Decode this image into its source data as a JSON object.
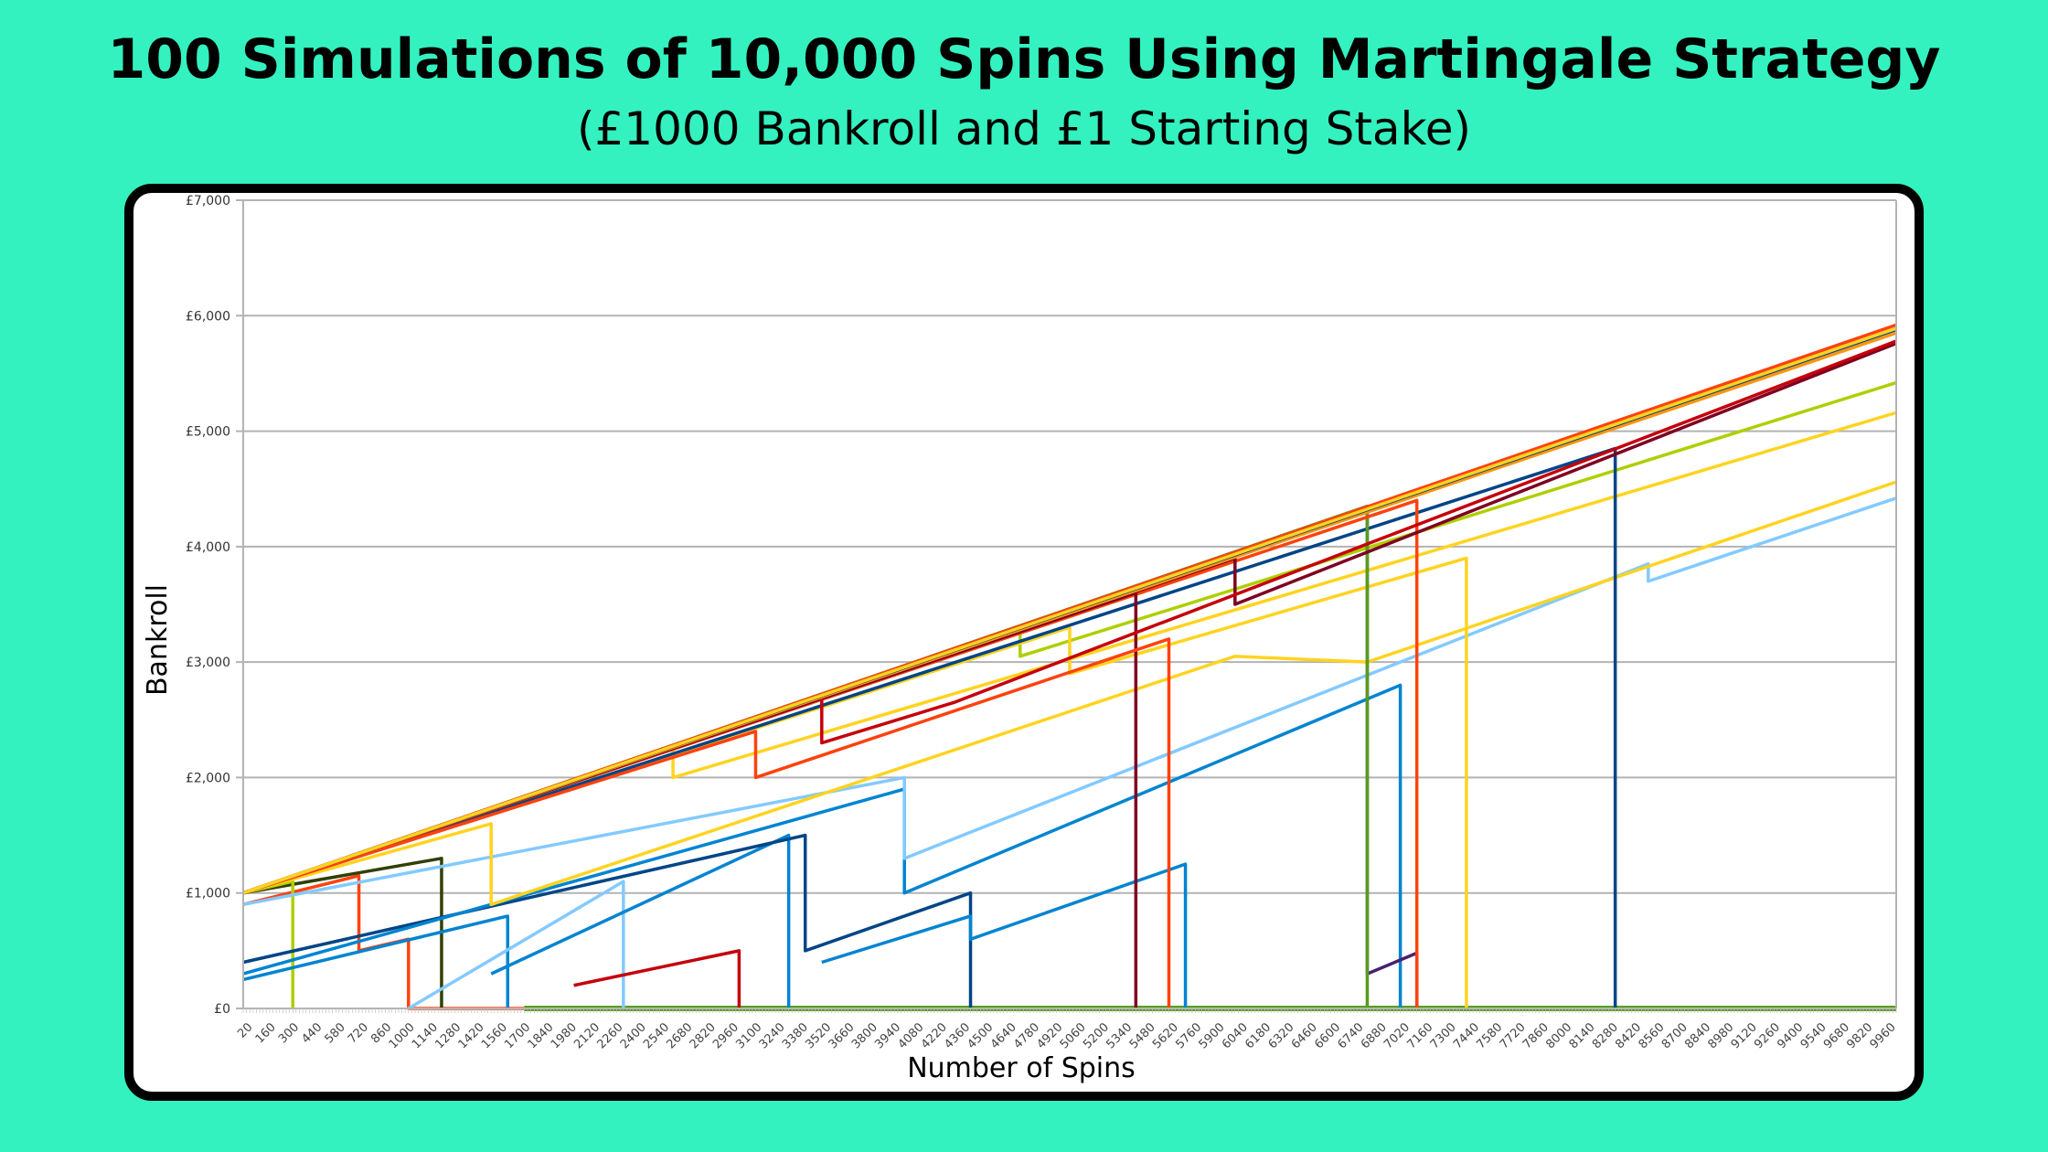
{
  "header": {
    "title": "100 Simulations of 10,000 Spins Using Martingale Strategy",
    "subtitle": "(£1000 Bankroll and £1 Starting Stake)"
  },
  "chart_data": {
    "type": "line",
    "xlabel": "Number of Spins",
    "ylabel": "Bankroll",
    "xlim": [
      0,
      10000
    ],
    "ylim": [
      0,
      7000
    ],
    "grid": "horizontal",
    "legend": "none",
    "y_ticks": [
      0,
      1000,
      2000,
      3000,
      4000,
      5000,
      6000,
      7000
    ],
    "y_tick_labels": [
      "£0",
      "£1,000",
      "£2,000",
      "£3,000",
      "£4,000",
      "£5,000",
      "£6,000",
      "£7,000"
    ],
    "x_ticks": [
      20,
      160,
      300,
      440,
      580,
      720,
      860,
      1000,
      1140,
      1280,
      1420,
      1560,
      1700,
      1840,
      1980,
      2120,
      2260,
      2400,
      2540,
      2680,
      2820,
      2960,
      3100,
      3240,
      3380,
      3520,
      3660,
      3800,
      3940,
      4080,
      4220,
      4360,
      4500,
      4640,
      4780,
      4920,
      5060,
      5200,
      5340,
      5480,
      5620,
      5760,
      5900,
      6040,
      6180,
      6320,
      6460,
      6600,
      6740,
      6880,
      7020,
      7160,
      7300,
      7440,
      7580,
      7720,
      7860,
      8000,
      8140,
      8280,
      8420,
      8560,
      8700,
      8840,
      8980,
      9120,
      9260,
      9400,
      9540,
      9680,
      9820,
      9960
    ],
    "x_tick_labels": [
      "20",
      "160",
      "300",
      "440",
      "580",
      "720",
      "860",
      "1000",
      "1140",
      "1280",
      "1420",
      "1560",
      "1700",
      "1840",
      "1980",
      "2120",
      "2260",
      "2400",
      "2540",
      "2680",
      "2820",
      "2960",
      "3100",
      "3240",
      "3380",
      "3520",
      "3660",
      "3800",
      "3940",
      "4080",
      "4220",
      "4360",
      "4500",
      "4640",
      "4780",
      "4920",
      "5060",
      "5200",
      "5340",
      "5480",
      "5620",
      "5760",
      "5900",
      "6040",
      "6180",
      "6320",
      "6460",
      "6600",
      "6740",
      "6880",
      "7020",
      "7160",
      "7300",
      "7440",
      "7580",
      "7720",
      "7860",
      "8000",
      "8140",
      "8280",
      "8420",
      "8560",
      "8700",
      "8840",
      "8980",
      "9120",
      "9260",
      "9400",
      "9540",
      "9680",
      "9820",
      "9960"
    ],
    "colors": [
      "#004586",
      "#ff420e",
      "#ffd320",
      "#579d1c",
      "#7e0021",
      "#83caff",
      "#314004",
      "#aecf00",
      "#4b1f6f",
      "#ff950e",
      "#c5000b",
      "#0084d1"
    ],
    "series": [
      {
        "color": "#579d1c",
        "points": [
          [
            1700,
            0
          ],
          [
            10000,
            0
          ]
        ]
      },
      {
        "color": "#ff420e",
        "points": [
          [
            0,
            900
          ],
          [
            700,
            1150
          ],
          [
            700,
            500
          ],
          [
            1000,
            600
          ],
          [
            1000,
            0
          ],
          [
            1700,
            0
          ]
        ]
      },
      {
        "color": "#314004",
        "points": [
          [
            0,
            1000
          ],
          [
            1200,
            1300
          ],
          [
            1200,
            0
          ]
        ]
      },
      {
        "color": "#aecf00",
        "points": [
          [
            0,
            1000
          ],
          [
            300,
            1100
          ],
          [
            300,
            0
          ]
        ]
      },
      {
        "color": "#0084d1",
        "points": [
          [
            0,
            250
          ],
          [
            1600,
            800
          ],
          [
            1600,
            0
          ]
        ]
      },
      {
        "color": "#83caff",
        "points": [
          [
            1000,
            0
          ],
          [
            2300,
            1100
          ],
          [
            2300,
            0
          ]
        ]
      },
      {
        "color": "#c5000b",
        "points": [
          [
            2000,
            200
          ],
          [
            3000,
            500
          ],
          [
            3000,
            0
          ]
        ]
      },
      {
        "color": "#0084d1",
        "points": [
          [
            1500,
            300
          ],
          [
            3300,
            1500
          ],
          [
            3300,
            0
          ]
        ]
      },
      {
        "color": "#004586",
        "points": [
          [
            0,
            400
          ],
          [
            3400,
            1500
          ],
          [
            3400,
            500
          ],
          [
            4400,
            1000
          ],
          [
            4400,
            0
          ]
        ]
      },
      {
        "color": "#0084d1",
        "points": [
          [
            3500,
            400
          ],
          [
            4400,
            800
          ],
          [
            4400,
            600
          ],
          [
            5700,
            1250
          ],
          [
            5700,
            0
          ]
        ]
      },
      {
        "color": "#0084d1",
        "points": [
          [
            0,
            300
          ],
          [
            4000,
            1900
          ],
          [
            4000,
            1000
          ],
          [
            7000,
            2800
          ],
          [
            7000,
            0
          ]
        ]
      },
      {
        "color": "#83caff",
        "points": [
          [
            0,
            900
          ],
          [
            4000,
            2000
          ],
          [
            4000,
            1300
          ],
          [
            8500,
            3850
          ],
          [
            8500,
            3700
          ],
          [
            10000,
            4420
          ]
        ]
      },
      {
        "color": "#ffd320",
        "points": [
          [
            0,
            1000
          ],
          [
            1500,
            1600
          ],
          [
            1500,
            900
          ],
          [
            6000,
            3050
          ],
          [
            6800,
            3000
          ],
          [
            10000,
            4560
          ]
        ]
      },
      {
        "color": "#ffd320",
        "points": [
          [
            0,
            1000
          ],
          [
            2600,
            2270
          ],
          [
            2600,
            2000
          ],
          [
            10000,
            5160
          ]
        ]
      },
      {
        "color": "#aecf00",
        "points": [
          [
            0,
            1000
          ],
          [
            4700,
            3300
          ],
          [
            4700,
            3050
          ],
          [
            10000,
            5420
          ]
        ]
      },
      {
        "color": "#ffd320",
        "points": [
          [
            0,
            1000
          ],
          [
            5000,
            3300
          ],
          [
            5000,
            2900
          ],
          [
            7400,
            3900
          ],
          [
            7400,
            0
          ]
        ]
      },
      {
        "color": "#004586",
        "points": [
          [
            0,
            1000
          ],
          [
            8300,
            4850
          ],
          [
            8300,
            0
          ]
        ]
      },
      {
        "color": "#4b1f6f",
        "points": [
          [
            0,
            1000
          ],
          [
            6800,
            4300
          ],
          [
            6800,
            300
          ],
          [
            7100,
            480
          ],
          [
            7100,
            0
          ]
        ]
      },
      {
        "color": "#579d1c",
        "points": [
          [
            0,
            1000
          ],
          [
            6800,
            4350
          ],
          [
            6800,
            0
          ]
        ]
      },
      {
        "color": "#ff420e",
        "points": [
          [
            0,
            1000
          ],
          [
            7100,
            4400
          ],
          [
            7100,
            0
          ]
        ]
      },
      {
        "color": "#7e0021",
        "points": [
          [
            0,
            1000
          ],
          [
            5400,
            3600
          ],
          [
            5400,
            0
          ]
        ]
      },
      {
        "color": "#ff420e",
        "points": [
          [
            0,
            1000
          ],
          [
            3100,
            2400
          ],
          [
            3100,
            2000
          ],
          [
            5600,
            3200
          ],
          [
            5600,
            0
          ]
        ]
      },
      {
        "color": "#7e0021",
        "points": [
          [
            0,
            1000
          ],
          [
            6000,
            3900
          ],
          [
            6000,
            3500
          ],
          [
            10000,
            5760
          ]
        ]
      },
      {
        "color": "#c5000b",
        "points": [
          [
            0,
            1000
          ],
          [
            3500,
            2700
          ],
          [
            3500,
            2300
          ],
          [
            4300,
            2650
          ],
          [
            10000,
            5780
          ]
        ]
      },
      {
        "color": "#ff950e",
        "points": [
          [
            0,
            1000
          ],
          [
            10000,
            5850
          ]
        ]
      },
      {
        "color": "#004586",
        "points": [
          [
            0,
            1000
          ],
          [
            10000,
            5880
          ]
        ]
      },
      {
        "color": "#ff420e",
        "points": [
          [
            0,
            1000
          ],
          [
            10000,
            5920
          ]
        ]
      },
      {
        "color": "#ffd320",
        "points": [
          [
            0,
            1000
          ],
          [
            10000,
            5890
          ]
        ]
      }
    ]
  }
}
